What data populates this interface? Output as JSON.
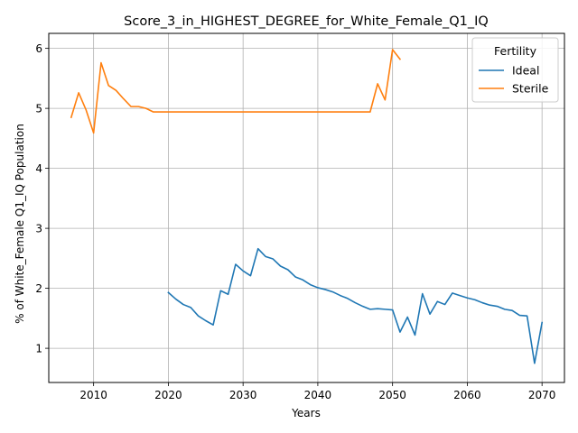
{
  "chart_data": {
    "type": "line",
    "title": "Score_3_in_HIGHEST_DEGREE_for_White_Female_Q1_IQ",
    "xlabel": "Years",
    "ylabel": "% of White_Female Q1_IQ Population",
    "xlim": [
      2004,
      2073
    ],
    "ylim": [
      0.43,
      6.25
    ],
    "xticks": [
      2010,
      2020,
      2030,
      2040,
      2050,
      2060,
      2070
    ],
    "yticks": [
      1,
      2,
      3,
      4,
      5,
      6
    ],
    "grid": true,
    "legend": {
      "title": "Fertility",
      "placement": "top-right"
    },
    "series": [
      {
        "name": "Ideal",
        "color": "#1f77b4",
        "x": [
          2020,
          2021,
          2022,
          2023,
          2024,
          2025,
          2026,
          2027,
          2028,
          2029,
          2030,
          2031,
          2032,
          2033,
          2034,
          2035,
          2036,
          2037,
          2038,
          2039,
          2040,
          2041,
          2042,
          2043,
          2044,
          2045,
          2046,
          2047,
          2048,
          2049,
          2050,
          2051,
          2052,
          2053,
          2054,
          2055,
          2056,
          2057,
          2058,
          2059,
          2060,
          2061,
          2062,
          2063,
          2064,
          2065,
          2066,
          2067,
          2068,
          2069,
          2070
        ],
        "y": [
          1.93,
          1.82,
          1.73,
          1.68,
          1.54,
          1.46,
          1.39,
          1.96,
          1.9,
          2.4,
          2.29,
          2.21,
          2.66,
          2.53,
          2.49,
          2.37,
          2.31,
          2.19,
          2.14,
          2.06,
          2.01,
          1.98,
          1.94,
          1.88,
          1.83,
          1.76,
          1.7,
          1.65,
          1.66,
          1.65,
          1.64,
          1.27,
          1.52,
          1.22,
          1.91,
          1.57,
          1.78,
          1.73,
          1.92,
          1.88,
          1.84,
          1.81,
          1.76,
          1.72,
          1.7,
          1.65,
          1.63,
          1.55,
          1.54,
          0.75,
          1.43
        ]
      },
      {
        "name": "Sterile",
        "color": "#ff7f0e",
        "x": [
          2007,
          2008,
          2009,
          2010,
          2011,
          2012,
          2013,
          2014,
          2015,
          2016,
          2017,
          2018,
          2019,
          2020,
          2021,
          2022,
          2023,
          2024,
          2025,
          2026,
          2027,
          2028,
          2029,
          2030,
          2031,
          2032,
          2033,
          2034,
          2035,
          2036,
          2037,
          2038,
          2039,
          2040,
          2041,
          2042,
          2043,
          2044,
          2045,
          2046,
          2047,
          2048,
          2049,
          2050,
          2051
        ],
        "y": [
          4.85,
          5.26,
          4.97,
          4.59,
          5.76,
          5.38,
          5.3,
          5.16,
          5.03,
          5.03,
          5.0,
          4.94,
          4.94,
          4.94,
          4.94,
          4.94,
          4.94,
          4.94,
          4.94,
          4.94,
          4.94,
          4.94,
          4.94,
          4.94,
          4.94,
          4.94,
          4.94,
          4.94,
          4.94,
          4.94,
          4.94,
          4.94,
          4.94,
          4.94,
          4.94,
          4.94,
          4.94,
          4.94,
          4.94,
          4.94,
          4.94,
          5.41,
          5.14,
          5.98,
          5.82
        ]
      }
    ]
  }
}
